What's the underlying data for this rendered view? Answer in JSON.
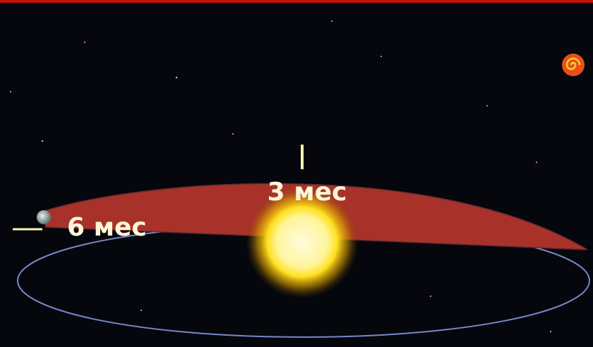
{
  "labels": [
    "3 мес",
    "6 мес"
  ]
}
